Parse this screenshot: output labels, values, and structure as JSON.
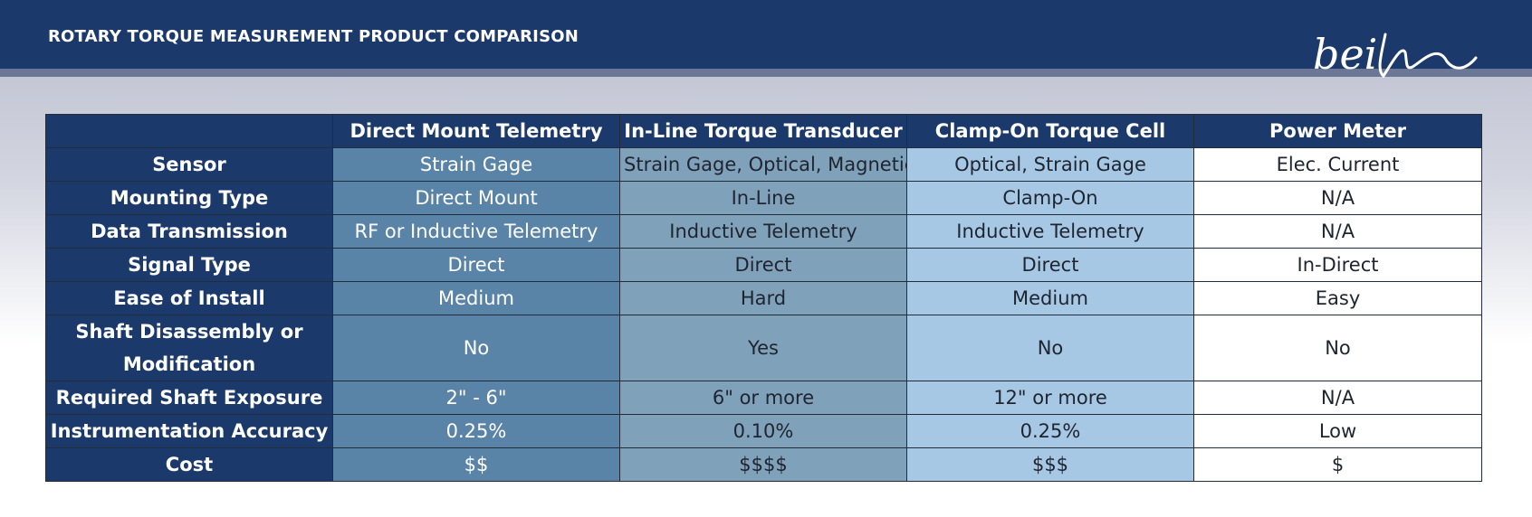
{
  "header": {
    "title": "ROTARY TORQUE MEASUREMENT PRODUCT COMPARISON",
    "logo_text": "bei"
  },
  "table": {
    "corner": "",
    "columns": [
      "Direct Mount Telemetry",
      "In-Line Torque Transducer",
      "Clamp-On Torque Cell",
      "Power Meter"
    ],
    "rows": [
      {
        "label": "Sensor",
        "cells": [
          "Strain Gage",
          "Strain Gage, Optical, Magnetic",
          "Optical, Strain Gage",
          "Elec. Current"
        ]
      },
      {
        "label": "Mounting Type",
        "cells": [
          "Direct Mount",
          "In-Line",
          "Clamp-On",
          "N/A"
        ]
      },
      {
        "label": "Data Transmission",
        "cells": [
          "RF or Inductive Telemetry",
          "Inductive Telemetry",
          "Inductive Telemetry",
          "N/A"
        ]
      },
      {
        "label": "Signal Type",
        "cells": [
          "Direct",
          "Direct",
          "Direct",
          "In-Direct"
        ]
      },
      {
        "label": "Ease of Install",
        "cells": [
          "Medium",
          "Hard",
          "Medium",
          "Easy"
        ]
      },
      {
        "label": "Shaft Disassembly or Modification",
        "cells": [
          "No",
          "Yes",
          "No",
          "No"
        ]
      },
      {
        "label": "Required Shaft Exposure",
        "cells": [
          "2\" - 6\"",
          "6\" or more",
          "12\" or more",
          "N/A"
        ]
      },
      {
        "label": "Instrumentation Accuracy",
        "cells": [
          "0.25%",
          "0.10%",
          "0.25%",
          "Low"
        ]
      },
      {
        "label": "Cost",
        "cells": [
          "$$",
          "$$$$",
          "$$$",
          "$"
        ]
      }
    ]
  },
  "colors": {
    "header_navy": "#1b3a6b",
    "col1": "#5a84a7",
    "col2": "#80a1ba",
    "col3": "#a7c8e4",
    "col4": "#ffffff"
  }
}
